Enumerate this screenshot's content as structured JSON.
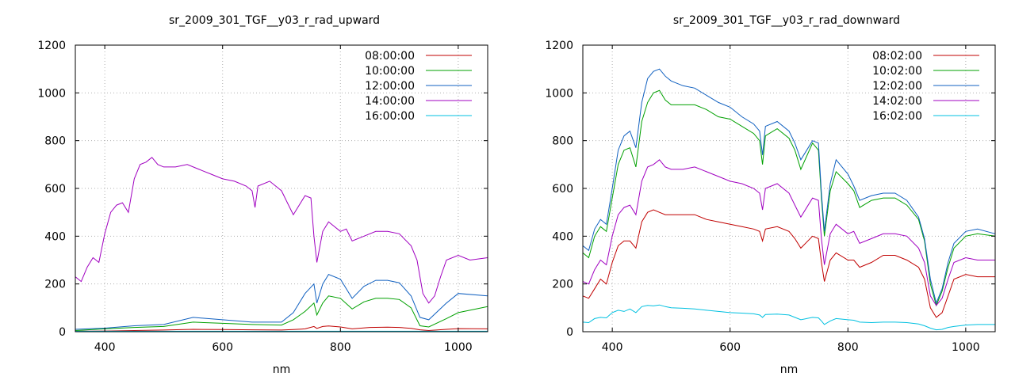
{
  "chart_data": [
    {
      "type": "line",
      "title": "sr_2009_301_TGF__y03_r_rad_upward",
      "xlabel": "nm",
      "ylabel": "",
      "xlim": [
        350,
        1050
      ],
      "ylim": [
        0,
        1200
      ],
      "xticks": [
        400,
        600,
        800,
        1000
      ],
      "yticks": [
        0,
        200,
        400,
        600,
        800,
        1000,
        1200
      ],
      "grid": true,
      "legend_position": "top-right",
      "series": [
        {
          "name": "08:00:00",
          "color": "#c00000",
          "x": [
            350,
            400,
            450,
            500,
            550,
            600,
            650,
            700,
            720,
            740,
            755,
            760,
            770,
            780,
            800,
            820,
            850,
            880,
            900,
            920,
            935,
            950,
            980,
            1000,
            1050
          ],
          "y": [
            2,
            3,
            5,
            7,
            10,
            9,
            8,
            7,
            9,
            12,
            22,
            14,
            22,
            24,
            20,
            12,
            18,
            19,
            18,
            14,
            8,
            5,
            10,
            13,
            12
          ]
        },
        {
          "name": "10:00:00",
          "color": "#00a000",
          "x": [
            350,
            400,
            450,
            500,
            550,
            600,
            650,
            700,
            720,
            740,
            755,
            760,
            770,
            780,
            800,
            820,
            840,
            860,
            880,
            900,
            920,
            935,
            950,
            980,
            1000,
            1050
          ],
          "y": [
            5,
            12,
            18,
            22,
            40,
            35,
            30,
            28,
            50,
            85,
            120,
            70,
            120,
            150,
            140,
            95,
            125,
            140,
            140,
            135,
            100,
            25,
            20,
            55,
            80,
            105
          ]
        },
        {
          "name": "12:00:00",
          "color": "#1060c0",
          "x": [
            350,
            400,
            450,
            500,
            550,
            600,
            650,
            700,
            720,
            740,
            755,
            760,
            770,
            780,
            800,
            820,
            840,
            860,
            880,
            900,
            920,
            935,
            950,
            980,
            1000,
            1050
          ],
          "y": [
            10,
            15,
            25,
            30,
            60,
            50,
            40,
            40,
            80,
            160,
            200,
            120,
            200,
            240,
            220,
            140,
            190,
            215,
            215,
            205,
            150,
            60,
            50,
            120,
            160,
            150
          ]
        },
        {
          "name": "14:00:00",
          "color": "#a000c0",
          "x": [
            350,
            360,
            370,
            380,
            390,
            400,
            410,
            420,
            430,
            440,
            450,
            460,
            470,
            480,
            490,
            500,
            520,
            540,
            560,
            580,
            600,
            620,
            640,
            650,
            655,
            660,
            680,
            700,
            710,
            720,
            740,
            750,
            755,
            760,
            770,
            780,
            800,
            810,
            820,
            840,
            860,
            880,
            900,
            920,
            930,
            940,
            950,
            960,
            970,
            980,
            1000,
            1020,
            1050
          ],
          "y": [
            230,
            210,
            270,
            310,
            290,
            410,
            500,
            530,
            540,
            500,
            640,
            700,
            710,
            730,
            700,
            690,
            690,
            700,
            680,
            660,
            640,
            630,
            610,
            590,
            520,
            610,
            630,
            590,
            540,
            490,
            570,
            560,
            400,
            290,
            420,
            460,
            420,
            430,
            380,
            400,
            420,
            420,
            410,
            360,
            300,
            160,
            120,
            150,
            230,
            300,
            320,
            300,
            310
          ]
        },
        {
          "name": "16:00:00",
          "color": "#00c0e0",
          "x": [
            350,
            1050
          ],
          "y": [
            2,
            2
          ]
        }
      ]
    },
    {
      "type": "line",
      "title": "sr_2009_301_TGF__y03_r_rad_downward",
      "xlabel": "nm",
      "ylabel": "",
      "xlim": [
        350,
        1050
      ],
      "ylim": [
        0,
        1200
      ],
      "xticks": [
        400,
        600,
        800,
        1000
      ],
      "yticks": [
        0,
        200,
        400,
        600,
        800,
        1000,
        1200
      ],
      "grid": true,
      "legend_position": "top-right",
      "series": [
        {
          "name": "08:02:00",
          "color": "#c00000",
          "x": [
            350,
            360,
            370,
            380,
            390,
            400,
            410,
            420,
            430,
            440,
            450,
            460,
            470,
            480,
            490,
            500,
            520,
            540,
            560,
            580,
            600,
            620,
            640,
            650,
            655,
            660,
            680,
            700,
            710,
            720,
            740,
            750,
            755,
            760,
            770,
            780,
            800,
            810,
            820,
            840,
            860,
            880,
            900,
            920,
            930,
            940,
            950,
            960,
            970,
            980,
            1000,
            1020,
            1050
          ],
          "y": [
            150,
            140,
            180,
            220,
            200,
            290,
            360,
            380,
            380,
            350,
            460,
            500,
            510,
            500,
            490,
            490,
            490,
            490,
            470,
            460,
            450,
            440,
            430,
            420,
            380,
            430,
            440,
            420,
            390,
            350,
            400,
            390,
            290,
            210,
            300,
            330,
            300,
            300,
            270,
            290,
            320,
            320,
            300,
            270,
            220,
            100,
            60,
            80,
            150,
            220,
            240,
            230,
            230
          ]
        },
        {
          "name": "10:02:00",
          "color": "#00a000",
          "x": [
            350,
            360,
            370,
            380,
            390,
            400,
            410,
            420,
            430,
            440,
            450,
            460,
            470,
            480,
            490,
            500,
            520,
            540,
            560,
            580,
            600,
            620,
            640,
            650,
            655,
            660,
            680,
            700,
            710,
            720,
            740,
            750,
            755,
            760,
            770,
            780,
            800,
            810,
            820,
            840,
            860,
            880,
            900,
            920,
            930,
            940,
            950,
            960,
            970,
            980,
            1000,
            1020,
            1050
          ],
          "y": [
            330,
            310,
            400,
            440,
            420,
            560,
            700,
            760,
            770,
            690,
            880,
            960,
            1000,
            1010,
            970,
            950,
            950,
            950,
            930,
            900,
            890,
            860,
            830,
            800,
            700,
            820,
            850,
            810,
            760,
            680,
            790,
            760,
            560,
            400,
            590,
            670,
            620,
            590,
            520,
            550,
            560,
            560,
            530,
            470,
            380,
            200,
            110,
            170,
            270,
            350,
            400,
            410,
            400
          ]
        },
        {
          "name": "12:02:00",
          "color": "#1060c0",
          "x": [
            350,
            360,
            370,
            380,
            390,
            400,
            410,
            420,
            430,
            440,
            450,
            460,
            470,
            480,
            490,
            500,
            520,
            540,
            560,
            580,
            600,
            620,
            640,
            650,
            655,
            660,
            680,
            700,
            710,
            720,
            740,
            750,
            755,
            760,
            770,
            780,
            800,
            810,
            820,
            840,
            860,
            880,
            900,
            920,
            930,
            940,
            950,
            960,
            970,
            980,
            1000,
            1020,
            1050
          ],
          "y": [
            360,
            340,
            430,
            470,
            450,
            600,
            760,
            820,
            840,
            770,
            960,
            1060,
            1090,
            1100,
            1070,
            1050,
            1030,
            1020,
            990,
            960,
            940,
            900,
            870,
            840,
            740,
            860,
            880,
            840,
            790,
            720,
            800,
            790,
            580,
            420,
            620,
            720,
            660,
            610,
            550,
            570,
            580,
            580,
            550,
            480,
            390,
            220,
            120,
            180,
            290,
            370,
            420,
            430,
            410
          ]
        },
        {
          "name": "14:02:00",
          "color": "#a000c0",
          "x": [
            350,
            360,
            370,
            380,
            390,
            400,
            410,
            420,
            430,
            440,
            450,
            460,
            470,
            480,
            490,
            500,
            520,
            540,
            560,
            580,
            600,
            620,
            640,
            650,
            655,
            660,
            680,
            700,
            710,
            720,
            740,
            750,
            755,
            760,
            770,
            780,
            800,
            810,
            820,
            840,
            860,
            880,
            900,
            920,
            930,
            940,
            950,
            960,
            970,
            980,
            1000,
            1020,
            1050
          ],
          "y": [
            210,
            200,
            260,
            300,
            280,
            400,
            490,
            520,
            530,
            490,
            630,
            690,
            700,
            720,
            690,
            680,
            680,
            690,
            670,
            650,
            630,
            620,
            600,
            580,
            510,
            600,
            620,
            580,
            530,
            480,
            560,
            550,
            390,
            280,
            410,
            450,
            410,
            420,
            370,
            390,
            410,
            410,
            400,
            350,
            290,
            150,
            110,
            140,
            220,
            290,
            310,
            300,
            300
          ]
        },
        {
          "name": "16:02:00",
          "color": "#00c0e0",
          "x": [
            350,
            360,
            370,
            380,
            390,
            400,
            410,
            420,
            430,
            440,
            450,
            460,
            470,
            480,
            490,
            500,
            520,
            540,
            560,
            580,
            600,
            620,
            640,
            650,
            655,
            660,
            680,
            700,
            710,
            720,
            740,
            750,
            755,
            760,
            770,
            780,
            800,
            810,
            820,
            840,
            860,
            880,
            900,
            920,
            930,
            940,
            950,
            960,
            970,
            980,
            1000,
            1020,
            1050
          ],
          "y": [
            40,
            38,
            55,
            60,
            58,
            80,
            90,
            85,
            95,
            80,
            105,
            110,
            108,
            112,
            105,
            100,
            98,
            95,
            90,
            85,
            80,
            78,
            75,
            70,
            60,
            72,
            74,
            70,
            60,
            50,
            60,
            58,
            45,
            30,
            45,
            55,
            50,
            48,
            40,
            38,
            40,
            40,
            38,
            32,
            25,
            15,
            8,
            10,
            18,
            22,
            28,
            30,
            30
          ]
        }
      ]
    }
  ]
}
